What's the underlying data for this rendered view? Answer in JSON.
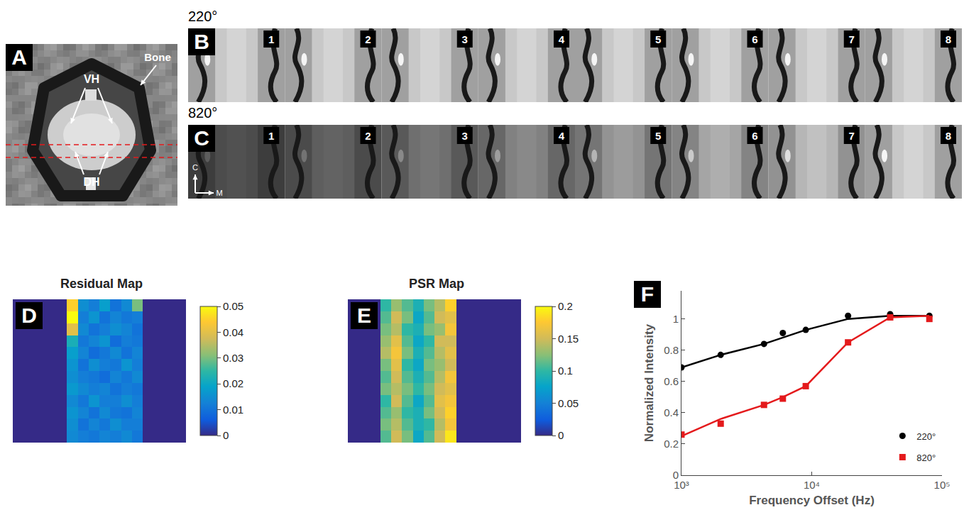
{
  "figure": {
    "A": {
      "label": "A",
      "annotations": [
        "VH",
        "Bone",
        "DH"
      ]
    },
    "B": {
      "label": "B",
      "title": "220°",
      "frames": [
        "1",
        "2",
        "3",
        "4",
        "5",
        "6",
        "7",
        "8"
      ]
    },
    "C": {
      "label": "C",
      "title": "820°",
      "frames": [
        "1",
        "2",
        "3",
        "4",
        "5",
        "6",
        "7",
        "8"
      ],
      "orientation": [
        "C",
        "M"
      ]
    }
  },
  "chart_data": [
    {
      "type": "heatmap",
      "panel": "D",
      "title": "Residual Map",
      "tick_labels": false,
      "zlim": [
        0,
        0.05
      ],
      "zticks": [
        0,
        0.01,
        0.02,
        0.03,
        0.04,
        0.05
      ],
      "z": [
        [
          0,
          0,
          0,
          0,
          0,
          0.045,
          0.015,
          0.012,
          0.018,
          0.01,
          0.014,
          0.03,
          0,
          0,
          0,
          0
        ],
        [
          0,
          0,
          0,
          0,
          0,
          0.05,
          0.012,
          0.016,
          0.01,
          0.013,
          0.011,
          0.012,
          0,
          0,
          0,
          0
        ],
        [
          0,
          0,
          0,
          0,
          0,
          0.04,
          0.014,
          0.01,
          0.012,
          0.015,
          0.013,
          0.01,
          0,
          0,
          0,
          0
        ],
        [
          0,
          0,
          0,
          0,
          0,
          0.022,
          0.011,
          0.013,
          0.016,
          0.009,
          0.012,
          0.011,
          0,
          0,
          0,
          0
        ],
        [
          0,
          0,
          0,
          0,
          0,
          0.018,
          0.013,
          0.009,
          0.011,
          0.014,
          0.01,
          0.013,
          0,
          0,
          0,
          0
        ],
        [
          0,
          0,
          0,
          0,
          0,
          0.016,
          0.01,
          0.015,
          0.012,
          0.011,
          0.016,
          0.012,
          0,
          0,
          0,
          0
        ],
        [
          0,
          0,
          0,
          0,
          0,
          0.015,
          0.012,
          0.011,
          0.009,
          0.013,
          0.011,
          0.014,
          0,
          0,
          0,
          0
        ],
        [
          0,
          0,
          0,
          0,
          0,
          0.017,
          0.014,
          0.012,
          0.013,
          0.01,
          0.012,
          0.011,
          0,
          0,
          0,
          0
        ],
        [
          0,
          0,
          0,
          0,
          0,
          0.014,
          0.011,
          0.016,
          0.012,
          0.012,
          0.015,
          0.012,
          0,
          0,
          0,
          0
        ],
        [
          0,
          0,
          0,
          0,
          0,
          0.016,
          0.013,
          0.01,
          0.014,
          0.011,
          0.01,
          0.013,
          0,
          0,
          0,
          0
        ],
        [
          0,
          0,
          0,
          0,
          0,
          0.015,
          0.01,
          0.013,
          0.011,
          0.015,
          0.012,
          0.012,
          0,
          0,
          0,
          0
        ],
        [
          0,
          0,
          0,
          0,
          0,
          0.014,
          0.012,
          0.011,
          0.013,
          0.012,
          0.014,
          0.011,
          0,
          0,
          0,
          0
        ]
      ]
    },
    {
      "type": "heatmap",
      "panel": "E",
      "title": "PSR Map",
      "tick_labels": false,
      "zlim": [
        0,
        0.2
      ],
      "zticks": [
        0,
        0.05,
        0.1,
        0.15,
        0.2
      ],
      "z": [
        [
          0,
          0,
          0,
          0.1,
          0.13,
          0.11,
          0.09,
          0.12,
          0.14,
          0.18,
          0,
          0,
          0,
          0,
          0,
          0
        ],
        [
          0,
          0,
          0,
          0.11,
          0.15,
          0.12,
          0.08,
          0.11,
          0.15,
          0.16,
          0,
          0,
          0,
          0,
          0,
          0
        ],
        [
          0,
          0,
          0,
          0.12,
          0.14,
          0.1,
          0.09,
          0.12,
          0.13,
          0.17,
          0,
          0,
          0,
          0,
          0,
          0
        ],
        [
          0,
          0,
          0,
          0.13,
          0.16,
          0.11,
          0.08,
          0.1,
          0.15,
          0.15,
          0,
          0,
          0,
          0,
          0,
          0
        ],
        [
          0,
          0,
          0,
          0.14,
          0.17,
          0.12,
          0.09,
          0.11,
          0.14,
          0.16,
          0,
          0,
          0,
          0,
          0,
          0
        ],
        [
          0,
          0,
          0,
          0.12,
          0.16,
          0.1,
          0.08,
          0.12,
          0.13,
          0.15,
          0,
          0,
          0,
          0,
          0,
          0
        ],
        [
          0,
          0,
          0,
          0.11,
          0.15,
          0.11,
          0.09,
          0.11,
          0.14,
          0.17,
          0,
          0,
          0,
          0,
          0,
          0
        ],
        [
          0,
          0,
          0,
          0.12,
          0.14,
          0.12,
          0.1,
          0.12,
          0.15,
          0.16,
          0,
          0,
          0,
          0,
          0,
          0
        ],
        [
          0,
          0,
          0,
          0.1,
          0.15,
          0.11,
          0.08,
          0.11,
          0.16,
          0.17,
          0,
          0,
          0,
          0,
          0,
          0
        ],
        [
          0,
          0,
          0,
          0.11,
          0.13,
          0.1,
          0.09,
          0.12,
          0.15,
          0.18,
          0,
          0,
          0,
          0,
          0,
          0
        ],
        [
          0,
          0,
          0,
          0.12,
          0.14,
          0.11,
          0.09,
          0.1,
          0.14,
          0.17,
          0,
          0,
          0,
          0,
          0,
          0
        ],
        [
          0,
          0,
          0,
          0.11,
          0.15,
          0.12,
          0.08,
          0.11,
          0.15,
          0.19,
          0,
          0,
          0,
          0,
          0,
          0
        ]
      ]
    },
    {
      "type": "line",
      "panel": "F",
      "log": "x",
      "grid": false,
      "legend": "bottom right",
      "xlabel": "Frequency Offset (Hz)",
      "ylabel": "Normalized Intensity",
      "x": [
        1000,
        2000,
        4300,
        6000,
        9000,
        19000,
        40000,
        80000
      ],
      "xlim": [
        1000,
        100000
      ],
      "xticks": [
        {
          "value": 1000,
          "label": "10³"
        },
        {
          "value": 10000,
          "label": "10⁴"
        },
        {
          "value": 100000,
          "label": "10⁵"
        }
      ],
      "ylim": [
        0,
        1.18
      ],
      "yticks": [
        0,
        0.2,
        0.4,
        0.6,
        0.8,
        1
      ],
      "series": [
        {
          "name": "220°",
          "color": "#000000",
          "marker": "circle",
          "values": [
            0.69,
            0.77,
            0.84,
            0.91,
            0.93,
            1.02,
            1.03,
            1.02
          ],
          "fit": [
            0.69,
            0.77,
            0.84,
            0.88,
            0.93,
            1.0,
            1.02,
            1.02
          ]
        },
        {
          "name": "820°",
          "color": "#e41a1c",
          "marker": "square",
          "values": [
            0.26,
            0.33,
            0.45,
            0.49,
            0.57,
            0.85,
            1.01,
            1.0
          ],
          "fit": [
            0.25,
            0.36,
            0.45,
            0.5,
            0.57,
            0.85,
            1.01,
            1.02
          ]
        }
      ]
    }
  ]
}
